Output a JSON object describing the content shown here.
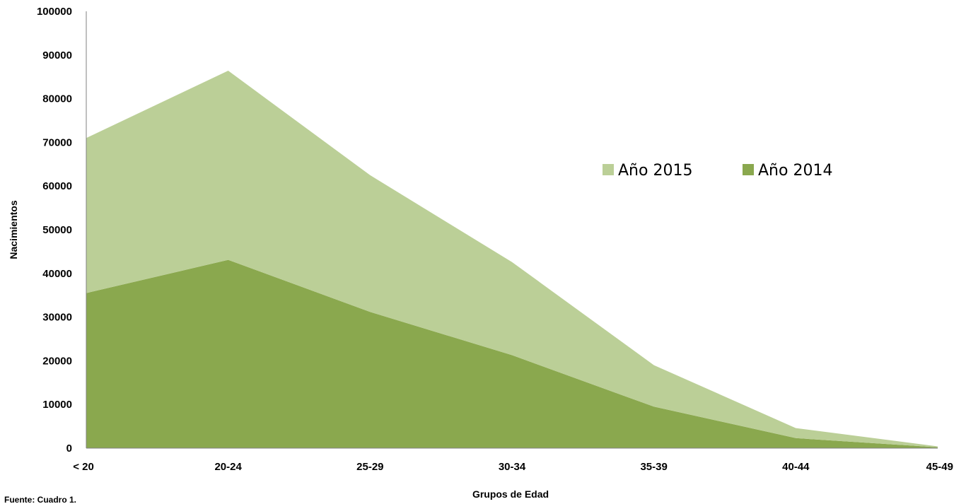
{
  "chart_data": {
    "type": "area",
    "stacked": true,
    "title": "",
    "xlabel": "Grupos de Edad",
    "ylabel": "Nacimientos",
    "categories": [
      "< 20",
      "20-24",
      "25-29",
      "30-34",
      "35-39",
      "40-44",
      "45-49"
    ],
    "series": [
      {
        "name": "Año 2014",
        "values": [
          35500,
          43100,
          31200,
          21300,
          9500,
          2300,
          200
        ],
        "color": "#8aa84e"
      },
      {
        "name": "Año 2015",
        "values": [
          35500,
          43300,
          31300,
          21300,
          9500,
          2300,
          200
        ],
        "color": "#bbcf97"
      }
    ],
    "legend_order": [
      "Año 2015",
      "Año 2014"
    ],
    "ylim": [
      0,
      100000
    ],
    "yticks": [
      0,
      10000,
      20000,
      30000,
      40000,
      50000,
      60000,
      70000,
      80000,
      90000,
      100000
    ],
    "grid": false,
    "legend_position": "right"
  },
  "source": "Fuente: Cuadro 1."
}
